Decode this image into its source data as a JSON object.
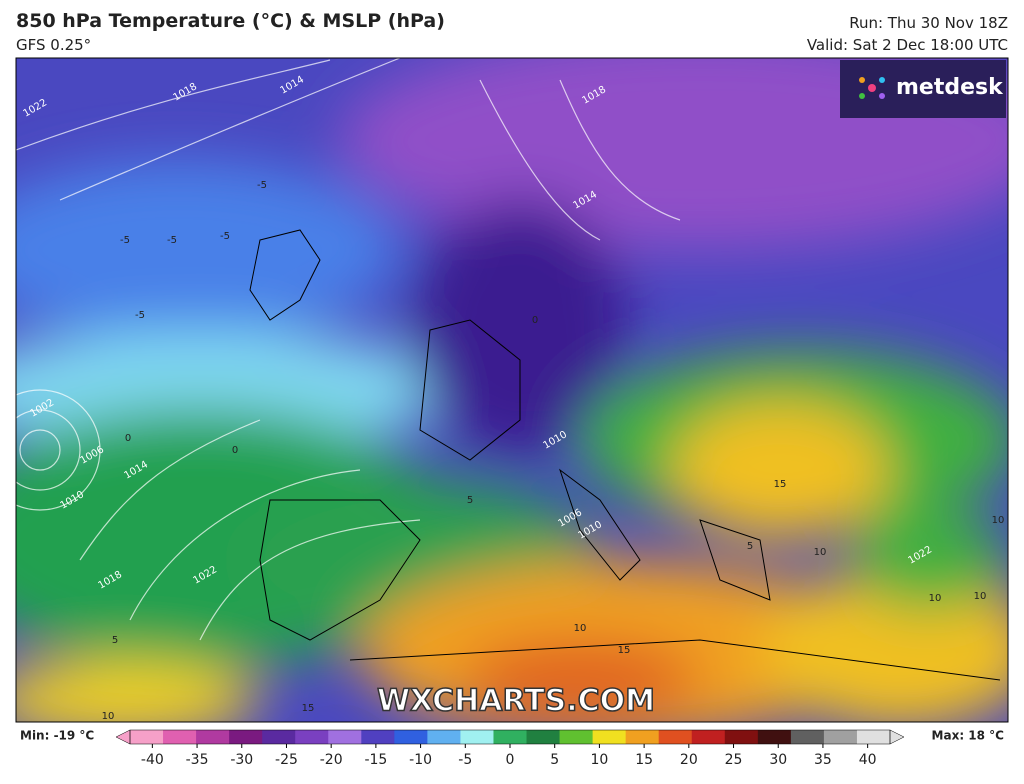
{
  "header": {
    "title": "850 hPa Temperature (°C) & MSLP (hPa)",
    "subtitle": "GFS 0.25°",
    "run": "Run: Thu 30 Nov 18Z",
    "valid": "Valid: Sat 2 Dec 18:00 UTC"
  },
  "logo": "metdesk",
  "watermark": "WXCHARTS.COM",
  "map": {
    "isobar_labels": [
      "1022",
      "1018",
      "1014",
      "1018",
      "1014",
      "1002",
      "1006",
      "1010",
      "1014",
      "1018",
      "1022",
      "1010",
      "1006",
      "1010",
      "1022"
    ],
    "temperature_labels": [
      "-5",
      "-5",
      "-5",
      "-5",
      "-5",
      "0",
      "0",
      "0",
      "5",
      "5",
      "10",
      "10",
      "10",
      "10",
      "15",
      "15",
      "15",
      "10",
      "10",
      "5"
    ]
  },
  "colorbar": {
    "min_label": "Min: -19 °C",
    "max_label": "Max: 18 °C",
    "range": [
      -42.5,
      42.5
    ],
    "ticks": [
      -40,
      -35,
      -30,
      -25,
      -20,
      -15,
      -10,
      -5,
      0,
      5,
      10,
      15,
      20,
      25,
      30,
      35,
      40
    ],
    "colors": [
      "#f6a0c8",
      "#e060b0",
      "#b03aa0",
      "#7a1a80",
      "#5a2aa0",
      "#7a40c0",
      "#a070e0",
      "#5040c0",
      "#3060e0",
      "#60b0f0",
      "#a0f0f0",
      "#30b060",
      "#208040",
      "#60c030",
      "#f0e020",
      "#f0a020",
      "#e05020",
      "#c02020",
      "#801010",
      "#401010",
      "#606060",
      "#a0a0a0",
      "#e0e0e0"
    ]
  }
}
